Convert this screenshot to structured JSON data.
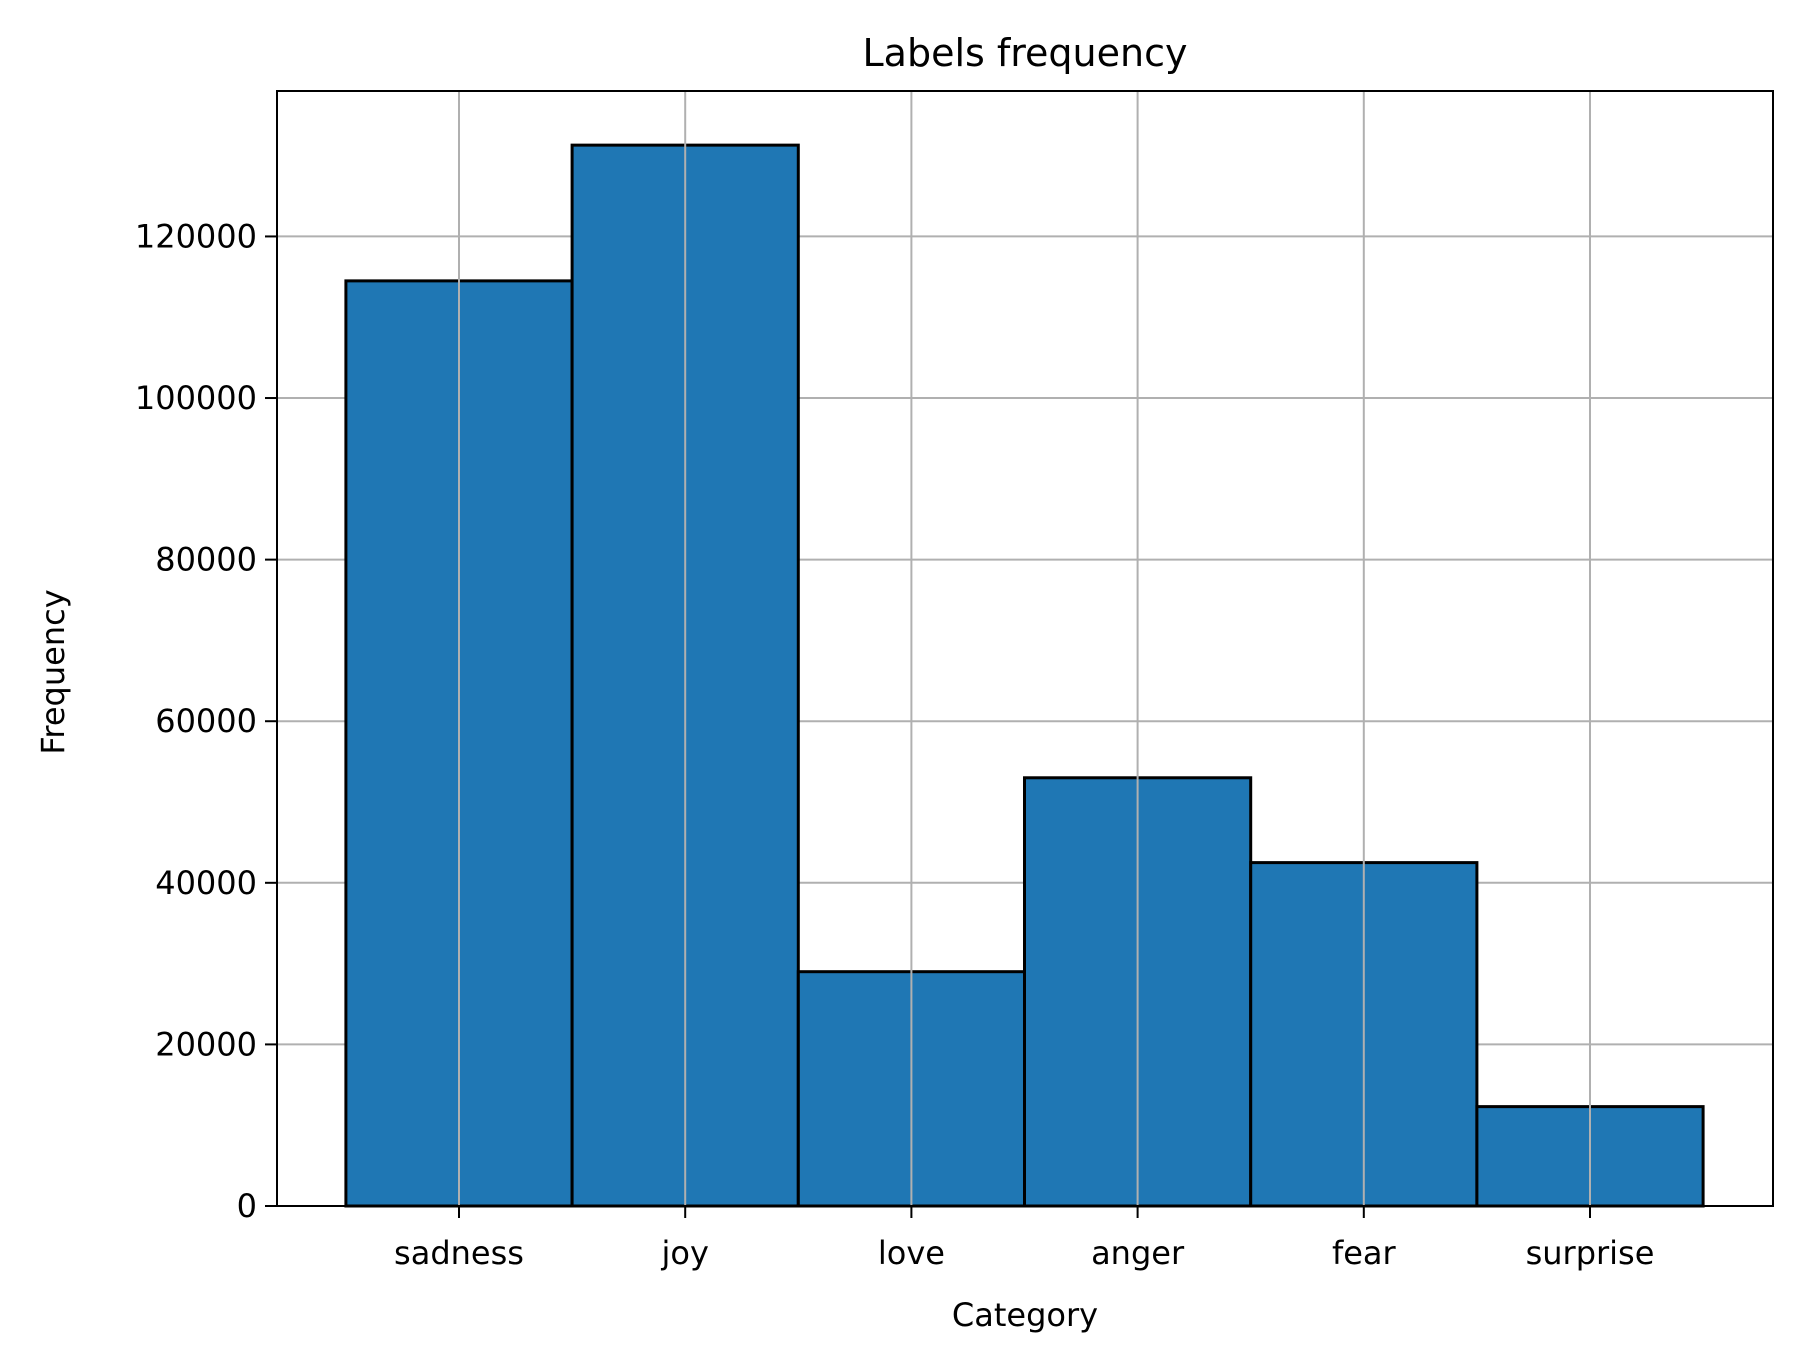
{
  "chart_data": {
    "type": "bar",
    "title": "Labels frequency",
    "xlabel": "Category",
    "ylabel": "Frequency",
    "categories": [
      "sadness",
      "joy",
      "love",
      "anger",
      "fear",
      "surprise"
    ],
    "values": [
      114500,
      131300,
      29000,
      53000,
      42500,
      12300
    ],
    "ylim": [
      0,
      138000
    ],
    "yticks": [
      0,
      20000,
      40000,
      60000,
      80000,
      100000,
      120000
    ],
    "ytick_labels": [
      "0",
      "20000",
      "40000",
      "60000",
      "80000",
      "100000",
      "120000"
    ],
    "grid": true,
    "bar_color": "#1f77b4",
    "bar_edge_color": "#000000",
    "grid_color": "#b0b0b0"
  }
}
